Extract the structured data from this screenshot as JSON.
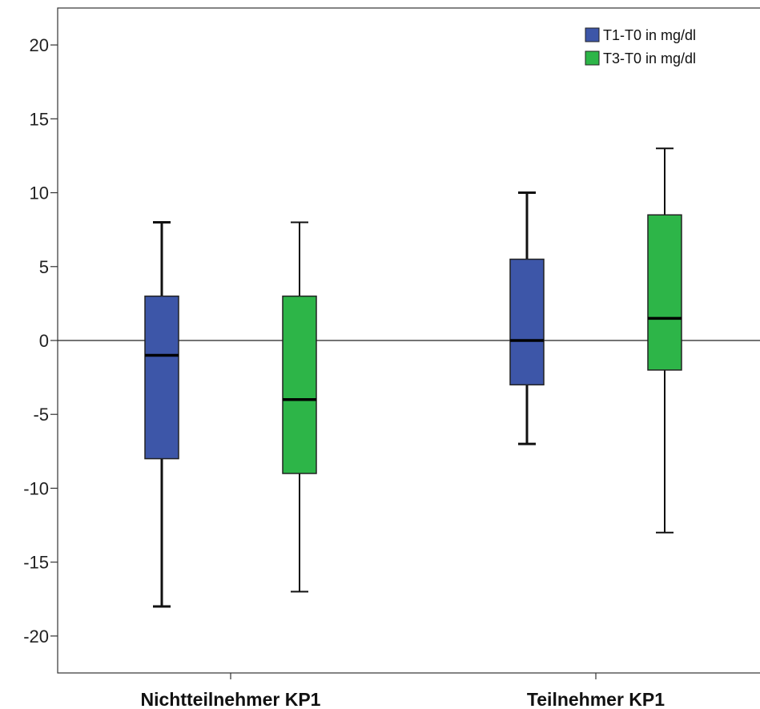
{
  "chart_data": {
    "type": "boxplot",
    "categories": [
      "Nichtteilnehmer KP1",
      "Teilnehmer KP1"
    ],
    "series": [
      {
        "name": "T1-T0 in mg/dl",
        "color": "#3d56a8",
        "boxes": [
          {
            "min": -18,
            "q1": -8,
            "median": -1,
            "q3": 3,
            "max": 8
          },
          {
            "min": -7,
            "q1": -3,
            "median": 0,
            "q3": 5.5,
            "max": 10
          }
        ]
      },
      {
        "name": "T3-T0 in mg/dl",
        "color": "#2db548",
        "boxes": [
          {
            "min": -17,
            "q1": -9,
            "median": -4,
            "q3": 3,
            "max": 8
          },
          {
            "min": -13,
            "q1": -2,
            "median": 1.5,
            "q3": 8.5,
            "max": 13
          }
        ]
      }
    ],
    "yticks": [
      "20",
      "15",
      "10",
      "5",
      "0",
      "-5",
      "-10",
      "-15",
      "-20"
    ],
    "ylim": [
      -22.5,
      22.5
    ],
    "reference_line": 0,
    "legend_position": "top-right",
    "grid": false
  }
}
